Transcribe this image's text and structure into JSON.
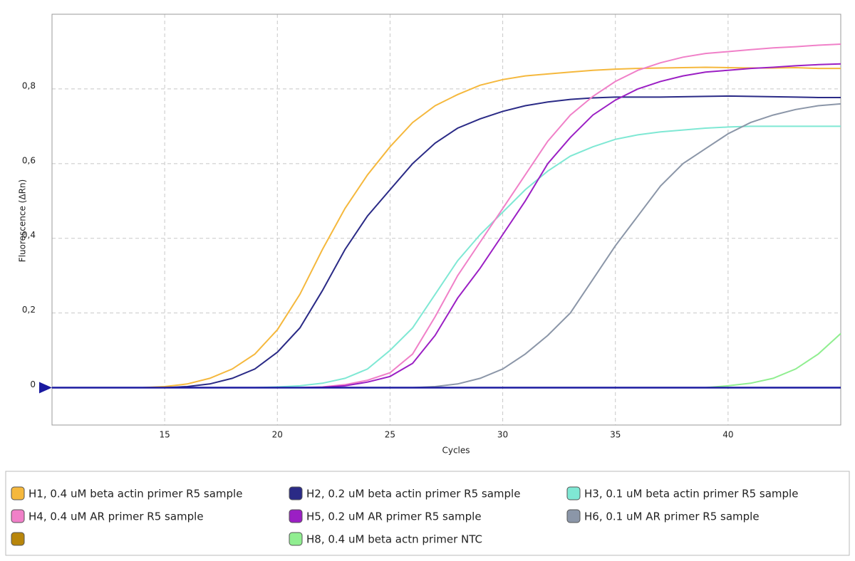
{
  "chart_data": {
    "type": "line",
    "xlabel": "Cycles",
    "ylabel": "Fluorescence (ΔRn)",
    "x": [
      10,
      11,
      12,
      13,
      14,
      15,
      16,
      17,
      18,
      19,
      20,
      21,
      22,
      23,
      24,
      25,
      26,
      27,
      28,
      29,
      30,
      31,
      32,
      33,
      34,
      35,
      36,
      37,
      38,
      39,
      40,
      41,
      42,
      43,
      44,
      45
    ],
    "xlim": [
      10,
      45
    ],
    "xticks": [
      15,
      20,
      25,
      30,
      35,
      40
    ],
    "ylim": [
      -0.1,
      1.0
    ],
    "yticks": [
      0,
      {
        "value": 0.2,
        "label": "0,2"
      },
      {
        "value": 0.4,
        "label": "0,4"
      },
      {
        "value": 0.6,
        "label": "0,6"
      },
      {
        "value": 0.8,
        "label": "0,8"
      }
    ],
    "grid": true,
    "threshold": 0,
    "threshold_color": "#1a1aa0",
    "series": [
      {
        "name": "H1, 0.4 uM beta actin primer R5 sample",
        "color": "#f5b83d",
        "values": [
          0,
          0,
          0,
          0,
          0,
          0.003,
          0.01,
          0.025,
          0.05,
          0.09,
          0.155,
          0.25,
          0.37,
          0.48,
          0.57,
          0.645,
          0.71,
          0.755,
          0.785,
          0.81,
          0.825,
          0.835,
          0.84,
          0.845,
          0.85,
          0.853,
          0.855,
          0.856,
          0.857,
          0.858,
          0.857,
          0.856,
          0.856,
          0.857,
          0.855,
          0.855
        ]
      },
      {
        "name": "H2, 0.2 uM beta actin primer R5 sample",
        "color": "#2a2a86",
        "values": [
          0,
          0,
          0,
          0,
          0,
          0,
          0.003,
          0.01,
          0.025,
          0.05,
          0.095,
          0.16,
          0.26,
          0.37,
          0.46,
          0.53,
          0.6,
          0.655,
          0.695,
          0.72,
          0.74,
          0.755,
          0.765,
          0.772,
          0.776,
          0.778,
          0.778,
          0.778,
          0.779,
          0.78,
          0.781,
          0.78,
          0.779,
          0.778,
          0.777,
          0.777
        ]
      },
      {
        "name": "H3, 0.1 uM beta actin primer R5 sample",
        "color": "#7fe8d4",
        "values": [
          0,
          0,
          0,
          0,
          0,
          0,
          0,
          0,
          0,
          0,
          0.002,
          0.005,
          0.012,
          0.025,
          0.05,
          0.1,
          0.16,
          0.25,
          0.34,
          0.41,
          0.47,
          0.53,
          0.58,
          0.62,
          0.645,
          0.665,
          0.677,
          0.685,
          0.69,
          0.695,
          0.698,
          0.7,
          0.7,
          0.7,
          0.7,
          0.7
        ]
      },
      {
        "name": "H4, 0.4 uM AR primer R5 sample",
        "color": "#f080c8",
        "values": [
          0,
          0,
          0,
          0,
          0,
          0,
          0,
          0,
          0,
          0,
          0,
          0,
          0.002,
          0.008,
          0.02,
          0.04,
          0.09,
          0.19,
          0.3,
          0.39,
          0.48,
          0.57,
          0.66,
          0.73,
          0.78,
          0.82,
          0.85,
          0.87,
          0.885,
          0.895,
          0.9,
          0.905,
          0.91,
          0.913,
          0.917,
          0.92
        ]
      },
      {
        "name": "H5, 0.2 uM AR primer R5 sample",
        "color": "#9b1fc4",
        "values": [
          0,
          0,
          0,
          0,
          0,
          0,
          0,
          0,
          0,
          0,
          0,
          0,
          0.001,
          0.005,
          0.015,
          0.03,
          0.065,
          0.14,
          0.24,
          0.32,
          0.41,
          0.5,
          0.6,
          0.67,
          0.73,
          0.77,
          0.8,
          0.82,
          0.835,
          0.845,
          0.85,
          0.855,
          0.858,
          0.862,
          0.865,
          0.867
        ]
      },
      {
        "name": "H6, 0.1 uM AR primer R5 sample",
        "color": "#8b96a8",
        "values": [
          0,
          0,
          0,
          0,
          0,
          0,
          0,
          0,
          0,
          0,
          0,
          0,
          0,
          0,
          0,
          0,
          0,
          0.003,
          0.01,
          0.025,
          0.05,
          0.09,
          0.14,
          0.2,
          0.29,
          0.38,
          0.46,
          0.54,
          0.6,
          0.64,
          0.68,
          0.71,
          0.73,
          0.745,
          0.755,
          0.76
        ]
      },
      {
        "name": null,
        "color": "#b8860b",
        "values": [
          null,
          null,
          null,
          null,
          null,
          null,
          null,
          null,
          null,
          null,
          null,
          null,
          null,
          null,
          null,
          null,
          null,
          null,
          null,
          null,
          null,
          null,
          null,
          null,
          null,
          null,
          null,
          null,
          null,
          null,
          null,
          null,
          null,
          null,
          null,
          null
        ]
      },
      {
        "name": "H8, 0.4 uM beta actn primer NTC",
        "color": "#90ee90",
        "values": [
          0,
          0,
          0,
          0,
          0,
          0,
          0,
          0,
          0,
          0,
          0,
          0,
          0,
          0,
          0,
          0,
          0,
          0,
          0,
          0,
          0,
          0,
          0,
          0,
          0,
          0,
          0,
          0,
          0,
          0,
          0.005,
          0.012,
          0.025,
          0.05,
          0.09,
          0.145
        ]
      }
    ]
  }
}
